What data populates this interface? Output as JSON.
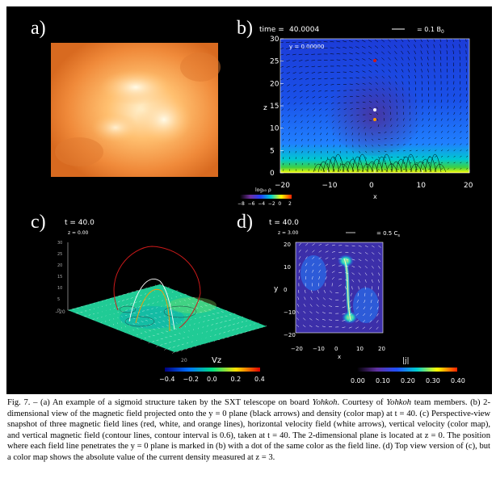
{
  "panels": {
    "a": {
      "label": "a)"
    },
    "b": {
      "label": "b)",
      "time_text": "time =",
      "time_value": "40.0004",
      "ref_vector": "= 0.1 B",
      "ref_sub": "0",
      "y_plane": "y = 0.00000",
      "axis_x": "x",
      "axis_z": "z",
      "x_ticks": [
        "−20",
        "−10",
        "0",
        "10",
        "20"
      ],
      "z_ticks": [
        "0",
        "5",
        "10",
        "15",
        "20",
        "25",
        "30"
      ],
      "colorbar_title": "log₁₀ ρ",
      "colorbar_ticks": [
        "−8",
        "−6",
        "−4",
        "−2",
        "0",
        "2"
      ]
    },
    "c": {
      "label": "c)",
      "time_text": "t = 40.0",
      "z_plane": "z = 0.00",
      "z_axis_ticks": [
        "0",
        "5",
        "10",
        "15",
        "20",
        "25",
        "30"
      ],
      "axis_vz": "Vz",
      "corner_ticks": [
        "−20",
        "20"
      ],
      "colorbar_ticks": [
        "−0.4",
        "−0.2",
        "0.0",
        "0.2",
        "0.4"
      ]
    },
    "d": {
      "label": "d)",
      "time_text": "t = 40.0",
      "z_plane": "z = 3.00",
      "ref_vector": "= 0.5 C",
      "ref_sub": "s",
      "axis_x": "x",
      "axis_y": "y",
      "x_ticks": [
        "−20",
        "−10",
        "0",
        "10",
        "20"
      ],
      "y_ticks": [
        "20",
        "10",
        "0",
        "−10",
        "−20"
      ],
      "colorbar_title": "|j|",
      "colorbar_ticks": [
        "0.00",
        "0.10",
        "0.20",
        "0.30",
        "0.40"
      ]
    }
  },
  "caption": {
    "fig_label": "Fig. 7. –",
    "part1": " (a) An example of a sigmoid structure taken by the SXT telescope on board ",
    "yohkoh1": "Yohkoh",
    "part2": ". Courtesy of ",
    "yohkoh2": "Yohkoh",
    "part3": " team members. (b) 2-dimensional view of the magnetic field projected onto the y = 0 plane (black arrows) and density (color map) at t = 40. (c) Perspective-view snapshot of three magnetic field lines (red, white, and orange lines), horizontal velocity field (white arrows), vertical velocity (color map), and vertical magnetic field (contour lines, contour interval is 0.6), taken at t = 40. The 2-dimensional plane is located at z = 0. The position where each field line penetrates the y = 0 plane is marked in (b) with a dot of the same color as the field line. (d) Top view version of (c), but a color map shows the absolute value of the current density measured at z = 3."
  },
  "colors": {
    "figure_bg": "#000000",
    "field_line_red": "#cc1a1a",
    "field_line_white": "#ffffff",
    "field_line_orange": "#ff9900"
  }
}
